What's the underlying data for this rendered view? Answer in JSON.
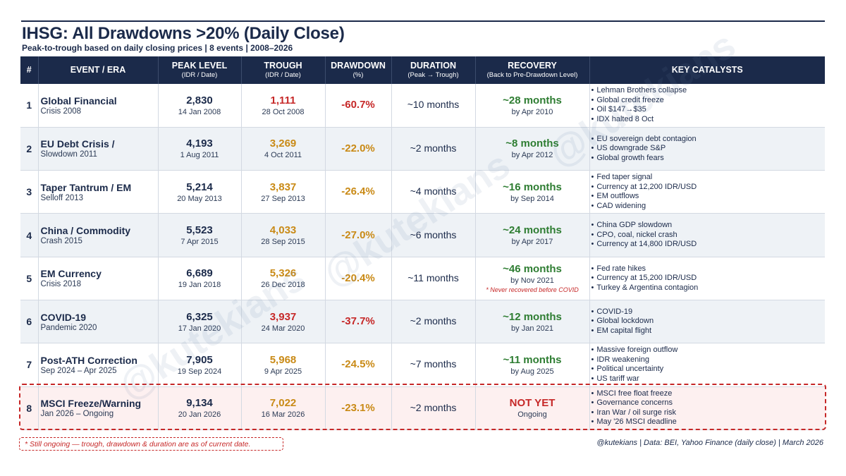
{
  "title": "IHSG: All Drawdowns >20% (Daily Close)",
  "subtitle": "Peak-to-trough based on daily closing prices  |  8 events  |  2008–2026",
  "headers": {
    "num": "#",
    "event": "EVENT / ERA",
    "peak": "PEAK LEVEL",
    "peak_sub": "(IDR / Date)",
    "trough": "TROUGH",
    "trough_sub": "(IDR / Date)",
    "drawdown": "DRAWDOWN",
    "drawdown_sub": "(%)",
    "duration": "DURATION",
    "duration_sub": "(Peak → Trough)",
    "recovery": "RECOVERY",
    "recovery_sub": "(Back to Pre-Drawdown Level)",
    "catalysts": "KEY CATALYSTS"
  },
  "rows": [
    {
      "num": "1",
      "event": "Global Financial",
      "event_sub": "Crisis 2008",
      "peak": "2,830",
      "peak_date": "14 Jan 2008",
      "trough": "1,111",
      "trough_date": "28 Oct 2008",
      "drawdown": "-60.7%",
      "duration": "~10 months",
      "recovery": "~28 months",
      "recovery_date": "by Apr 2010",
      "note": "",
      "catalysts": [
        "Lehman Brothers collapse",
        "Global credit freeze",
        "Oil $147→$35",
        "IDX halted 8 Oct"
      ]
    },
    {
      "num": "2",
      "event": "EU Debt Crisis /",
      "event_sub": "Slowdown 2011",
      "peak": "4,193",
      "peak_date": "1 Aug 2011",
      "trough": "3,269",
      "trough_date": "4 Oct 2011",
      "drawdown": "-22.0%",
      "duration": "~2 months",
      "recovery": "~8 months",
      "recovery_date": "by Apr 2012",
      "note": "",
      "catalysts": [
        "EU sovereign debt contagion",
        "US downgrade S&P",
        "Global growth fears"
      ]
    },
    {
      "num": "3",
      "event": "Taper Tantrum / EM",
      "event_sub": "Selloff 2013",
      "peak": "5,214",
      "peak_date": "20 May 2013",
      "trough": "3,837",
      "trough_date": "27 Sep 2013",
      "drawdown": "-26.4%",
      "duration": "~4 months",
      "recovery": "~16 months",
      "recovery_date": "by Sep 2014",
      "note": "",
      "catalysts": [
        "Fed taper signal",
        "Currency at 12,200 IDR/USD",
        "EM outflows",
        "CAD widening"
      ]
    },
    {
      "num": "4",
      "event": "China / Commodity",
      "event_sub": "Crash 2015",
      "peak": "5,523",
      "peak_date": "7 Apr 2015",
      "trough": "4,033",
      "trough_date": "28 Sep 2015",
      "drawdown": "-27.0%",
      "duration": "~6 months",
      "recovery": "~24 months",
      "recovery_date": "by Apr 2017",
      "note": "",
      "catalysts": [
        "China GDP slowdown",
        "CPO, coal, nickel crash",
        "Currency at 14,800 IDR/USD"
      ]
    },
    {
      "num": "5",
      "event": "EM Currency",
      "event_sub": "Crisis 2018",
      "peak": "6,689",
      "peak_date": "19 Jan 2018",
      "trough": "5,326",
      "trough_date": "26 Dec 2018",
      "drawdown": "-20.4%",
      "duration": "~11 months",
      "recovery": "~46 months",
      "recovery_date": "by Nov 2021",
      "note": "* Never recovered before COVID",
      "catalysts": [
        "Fed rate hikes",
        "Currency at 15,200 IDR/USD",
        "Turkey & Argentina contagion"
      ]
    },
    {
      "num": "6",
      "event": "COVID-19",
      "event_sub": "Pandemic 2020",
      "peak": "6,325",
      "peak_date": "17 Jan 2020",
      "trough": "3,937",
      "trough_date": "24 Mar 2020",
      "drawdown": "-37.7%",
      "duration": "~2 months",
      "recovery": "~12 months",
      "recovery_date": "by Jan 2021",
      "note": "",
      "catalysts": [
        "COVID-19",
        "Global lockdown",
        "EM capital flight"
      ]
    },
    {
      "num": "7",
      "event": "Post-ATH Correction",
      "event_sub": "Sep 2024 – Apr 2025",
      "peak": "7,905",
      "peak_date": "19 Sep 2024",
      "trough": "5,968",
      "trough_date": "9 Apr 2025",
      "drawdown": "-24.5%",
      "duration": "~7 months",
      "recovery": "~11 months",
      "recovery_date": "by Aug 2025",
      "note": "",
      "catalysts": [
        "Massive foreign outflow",
        "IDR weakening",
        "Political uncertainty",
        "US tariff war"
      ]
    },
    {
      "num": "8",
      "event": "MSCI Freeze/Warning",
      "event_sub": "Jan 2026 – Ongoing",
      "peak": "9,134",
      "peak_date": "20 Jan 2026",
      "trough": "7,022",
      "trough_date": "16 Mar 2026",
      "drawdown": "-23.1%",
      "duration": "~2 months",
      "recovery": "NOT YET",
      "recovery_date": "Ongoing",
      "note": "",
      "catalysts": [
        "MSCI free float freeze",
        "Governance concerns",
        "Iran War / oil surge risk",
        "May '26 MSCI deadline"
      ]
    }
  ],
  "footnote": "* Still ongoing — trough, drawdown & duration are as of current date.",
  "source": "@kutekians  |  Data: BEI, Yahoo Finance (daily close)  |  March 2026",
  "colors": {
    "navy": "#1b2a4a",
    "red": "#c62828",
    "orange": "#c98a16",
    "green": "#2e7d32",
    "highlight_bg": "#fdf0f0",
    "stripe_bg": "#eef2f6"
  }
}
